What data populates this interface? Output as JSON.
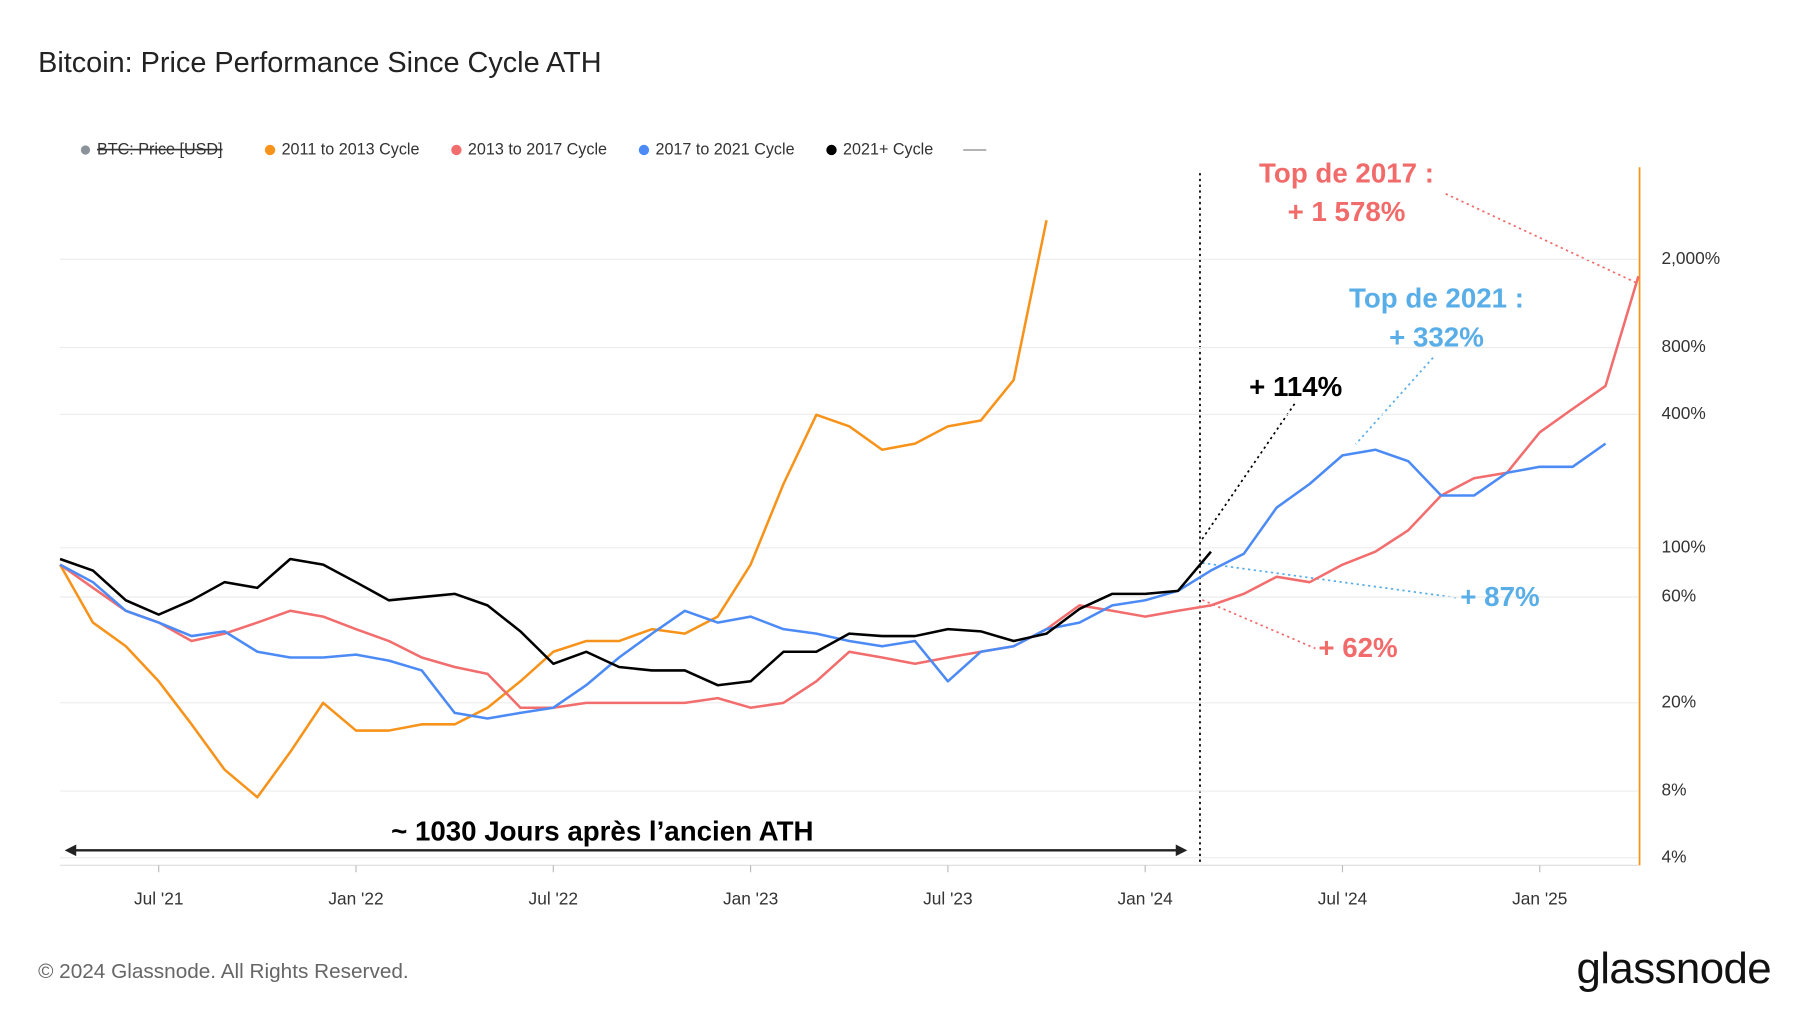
{
  "chart_data": {
    "type": "line",
    "title": "Bitcoin: Price Performance Since Cycle ATH",
    "legend_extra": "BTC: Price [USD]",
    "x": [
      "2021-04",
      "2021-05",
      "2021-06",
      "2021-07",
      "2021-08",
      "2021-09",
      "2021-10",
      "2021-11",
      "2021-12",
      "2022-01",
      "2022-02",
      "2022-03",
      "2022-04",
      "2022-05",
      "2022-06",
      "2022-07",
      "2022-08",
      "2022-09",
      "2022-10",
      "2022-11",
      "2022-12",
      "2023-01",
      "2023-02",
      "2023-03",
      "2023-04",
      "2023-05",
      "2023-06",
      "2023-07",
      "2023-08",
      "2023-09",
      "2023-10",
      "2023-11",
      "2023-12",
      "2024-01",
      "2024-02",
      "2024-03",
      "2024-04",
      "2024-05",
      "2024-06",
      "2024-07",
      "2024-08",
      "2024-09",
      "2024-10",
      "2024-11",
      "2024-12",
      "2025-01",
      "2025-02",
      "2025-03",
      "2025-04"
    ],
    "xlim": [
      "2021-04",
      "2025-04"
    ],
    "xticks": [
      {
        "value": "2021-07",
        "label": "Jul '21"
      },
      {
        "value": "2022-01",
        "label": "Jan '22"
      },
      {
        "value": "2022-07",
        "label": "Jul '22"
      },
      {
        "value": "2023-01",
        "label": "Jan '23"
      },
      {
        "value": "2023-07",
        "label": "Jul '23"
      },
      {
        "value": "2024-01",
        "label": "Jan '24"
      },
      {
        "value": "2024-07",
        "label": "Jul '24"
      },
      {
        "value": "2025-01",
        "label": "Jan '25"
      }
    ],
    "yscale": "log",
    "ylim": [
      3.7,
      5200
    ],
    "yticks": [
      {
        "value": 4,
        "label": "4%"
      },
      {
        "value": 8,
        "label": "8%"
      },
      {
        "value": 20,
        "label": "20%"
      },
      {
        "value": 60,
        "label": "60%"
      },
      {
        "value": 100,
        "label": "100%"
      },
      {
        "value": 400,
        "label": "400%"
      },
      {
        "value": 800,
        "label": "800%"
      },
      {
        "value": 2000,
        "label": "2,000%"
      }
    ],
    "grid": true,
    "series": [
      {
        "name": "2011 to 2013 Cycle",
        "color": "#f7931a",
        "values": [
          84,
          46,
          36,
          25,
          16,
          10,
          7.5,
          12,
          20,
          15,
          15,
          16,
          16,
          19,
          25,
          34,
          38,
          38,
          43,
          41,
          49,
          84,
          194,
          398,
          353,
          277,
          295,
          353,
          375,
          571,
          3000,
          null,
          null,
          null,
          null,
          null,
          null,
          null,
          null,
          null,
          null,
          null,
          null,
          null,
          null,
          null,
          null,
          null,
          null
        ]
      },
      {
        "name": "2013 to 2017 Cycle",
        "color": "#f26d6d",
        "values": [
          84,
          66,
          52,
          46,
          38,
          41,
          46,
          52,
          49,
          43,
          38,
          32,
          29,
          27,
          19,
          19,
          20,
          20,
          20,
          20,
          21,
          19,
          20,
          25,
          34,
          32,
          30,
          32,
          34,
          36,
          43,
          55,
          52,
          49,
          52,
          55,
          62,
          74,
          70,
          84,
          96,
          120,
          172,
          206,
          218,
          332,
          423,
          537,
          1678
        ]
      },
      {
        "name": "2017 to 2021 Cycle",
        "color": "#4c8bf5",
        "values": [
          84,
          70,
          52,
          46,
          40,
          42,
          34,
          32,
          32,
          33,
          31,
          28,
          18,
          17,
          18,
          19,
          24,
          32,
          41,
          52,
          46,
          49,
          43,
          41,
          38,
          36,
          38,
          25,
          34,
          36,
          43,
          46,
          55,
          58,
          64,
          79,
          94,
          152,
          194,
          261,
          277,
          246,
          172,
          172,
          218,
          232,
          232,
          295,
          null
        ]
      },
      {
        "name": "2021+ Cycle",
        "color": "#000000",
        "values": [
          89,
          79,
          58,
          50,
          58,
          70,
          66,
          89,
          84,
          70,
          58,
          60,
          62,
          55,
          42,
          30,
          34,
          29,
          28,
          28,
          24,
          25,
          34,
          34,
          41,
          40,
          40,
          43,
          42,
          38,
          41,
          53,
          62,
          62,
          64,
          96,
          null,
          null,
          null,
          null,
          null,
          null,
          null,
          null,
          null,
          null,
          null,
          null,
          null
        ]
      }
    ],
    "annotations": [
      {
        "text": "Top de 2017 :",
        "color": "#f26b6b"
      },
      {
        "text": "+ 1 578%",
        "color": "#f26b6b"
      },
      {
        "text": "Top de 2021 :",
        "color": "#5aaee8"
      },
      {
        "text": "+ 332%",
        "color": "#5aaee8"
      },
      {
        "text": "+ 114%",
        "color": "#000000"
      },
      {
        "text": "+ 87%",
        "color": "#5aaee8"
      },
      {
        "text": "+ 62%",
        "color": "#f26b6b"
      },
      {
        "text": "~ 1030 Jours après l’ancien ATH",
        "color": "#000000"
      }
    ]
  },
  "footer": {
    "copyright": "© 2024 Glassnode. All Rights Reserved.",
    "brand": "glassnode"
  }
}
